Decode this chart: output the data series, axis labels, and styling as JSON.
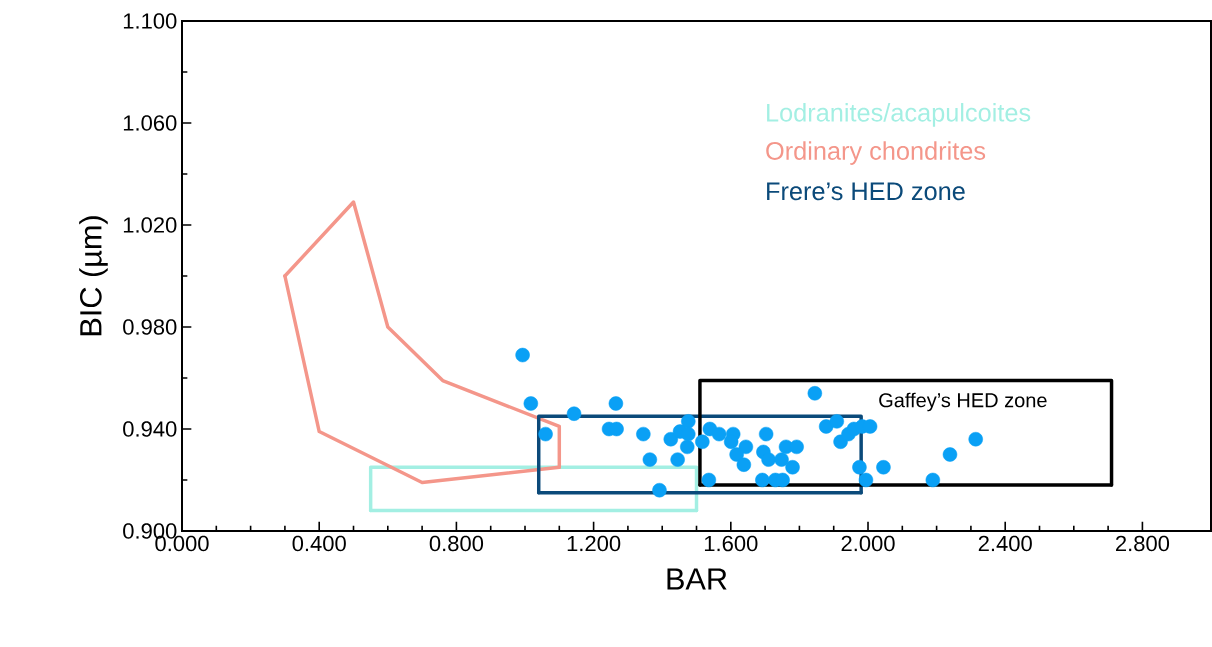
{
  "chart_data": {
    "type": "scatter",
    "xlabel": "BAR",
    "ylabel": "BIC (µm)",
    "xlim": [
      0,
      3.0
    ],
    "ylim": [
      0.9,
      1.1
    ],
    "xticks": [
      {
        "value": 0,
        "label": "0.000"
      },
      {
        "value": 0.4,
        "label": "0.400"
      },
      {
        "value": 0.8,
        "label": "0.800"
      },
      {
        "value": 1.2,
        "label": "1.200"
      },
      {
        "value": 1.6,
        "label": "1.600"
      },
      {
        "value": 2.0,
        "label": "2.000"
      },
      {
        "value": 2.4,
        "label": "2.400"
      },
      {
        "value": 2.8,
        "label": "2.800"
      }
    ],
    "yticks": [
      {
        "value": 0.9,
        "label": "0.900"
      },
      {
        "value": 0.94,
        "label": "0.940"
      },
      {
        "value": 0.98,
        "label": "0.980"
      },
      {
        "value": 1.02,
        "label": "1.020"
      },
      {
        "value": 1.06,
        "label": "1.060"
      },
      {
        "value": 1.1,
        "label": "1.100"
      }
    ],
    "series": [
      {
        "name": "Lodranites/acapulcoites",
        "type": "line",
        "color": "#a3efe3",
        "x": [
          0.55,
          0.55,
          1.5,
          1.5
        ],
        "values": [
          0.908,
          0.925,
          0.925,
          0.908
        ]
      },
      {
        "type": "line",
        "color": "#a3efe3",
        "x": [
          0.55,
          1.5
        ],
        "values": [
          0.908,
          0.908
        ]
      },
      {
        "name": "Ordinary chondrites",
        "type": "line",
        "color": "#f4968a",
        "x": [
          0.3,
          0.5,
          0.6,
          0.76,
          1.1,
          1.1
        ],
        "values": [
          1.0,
          1.029,
          0.98,
          0.959,
          0.941,
          0.925
        ]
      },
      {
        "type": "line",
        "color": "#f4968a",
        "x": [
          0.3,
          0.4,
          0.7,
          1.1
        ],
        "values": [
          1.0,
          0.939,
          0.919,
          0.925
        ]
      },
      {
        "name": "Frere’s HED zone",
        "type": "line",
        "color": "#0b4a7a",
        "x": [
          1.04,
          1.04,
          1.98,
          1.98
        ],
        "values": [
          0.915,
          0.945,
          0.945,
          0.915
        ]
      },
      {
        "type": "line",
        "color": "#0b4a7a",
        "x": [
          1.04,
          1.98
        ],
        "values": [
          0.915,
          0.915
        ]
      },
      {
        "type": "line",
        "color": "#000000",
        "x": [
          1.51,
          1.51,
          2.71,
          2.71
        ],
        "values": [
          0.918,
          0.959,
          0.959,
          0.918
        ]
      },
      {
        "type": "line",
        "color": "#000000",
        "x": [
          1.51,
          2.71
        ],
        "values": [
          0.918,
          0.918
        ]
      },
      {
        "marker": "circle",
        "color": "#0aa0f5",
        "x": [
          1.017,
          1.06,
          1.143,
          1.265,
          1.245,
          1.267,
          1.345,
          1.364,
          1.392,
          1.425,
          1.445,
          1.452,
          1.476,
          1.476,
          1.473,
          1.517,
          1.536,
          1.539,
          1.566,
          1.607,
          1.601,
          1.644,
          1.617,
          1.638,
          1.703,
          1.695,
          1.71,
          1.692,
          1.73,
          1.751,
          1.761,
          1.792,
          1.748,
          1.78,
          1.845,
          1.878,
          1.909,
          1.92,
          1.943,
          1.959,
          1.983,
          2.006,
          1.975,
          1.994,
          2.045,
          2.239,
          2.189,
          2.314,
          0.993
        ],
        "values": [
          0.95,
          0.938,
          0.946,
          0.95,
          0.94,
          0.94,
          0.938,
          0.928,
          0.916,
          0.936,
          0.928,
          0.939,
          0.943,
          0.938,
          0.933,
          0.935,
          0.92,
          0.94,
          0.938,
          0.938,
          0.935,
          0.933,
          0.93,
          0.926,
          0.938,
          0.931,
          0.928,
          0.92,
          0.92,
          0.92,
          0.933,
          0.933,
          0.928,
          0.925,
          0.954,
          0.941,
          0.943,
          0.935,
          0.938,
          0.94,
          0.941,
          0.941,
          0.925,
          0.92,
          0.925,
          0.93,
          0.92,
          0.936,
          0.969
        ]
      }
    ],
    "annotations": [
      "Gaffey’s HED zone"
    ]
  }
}
